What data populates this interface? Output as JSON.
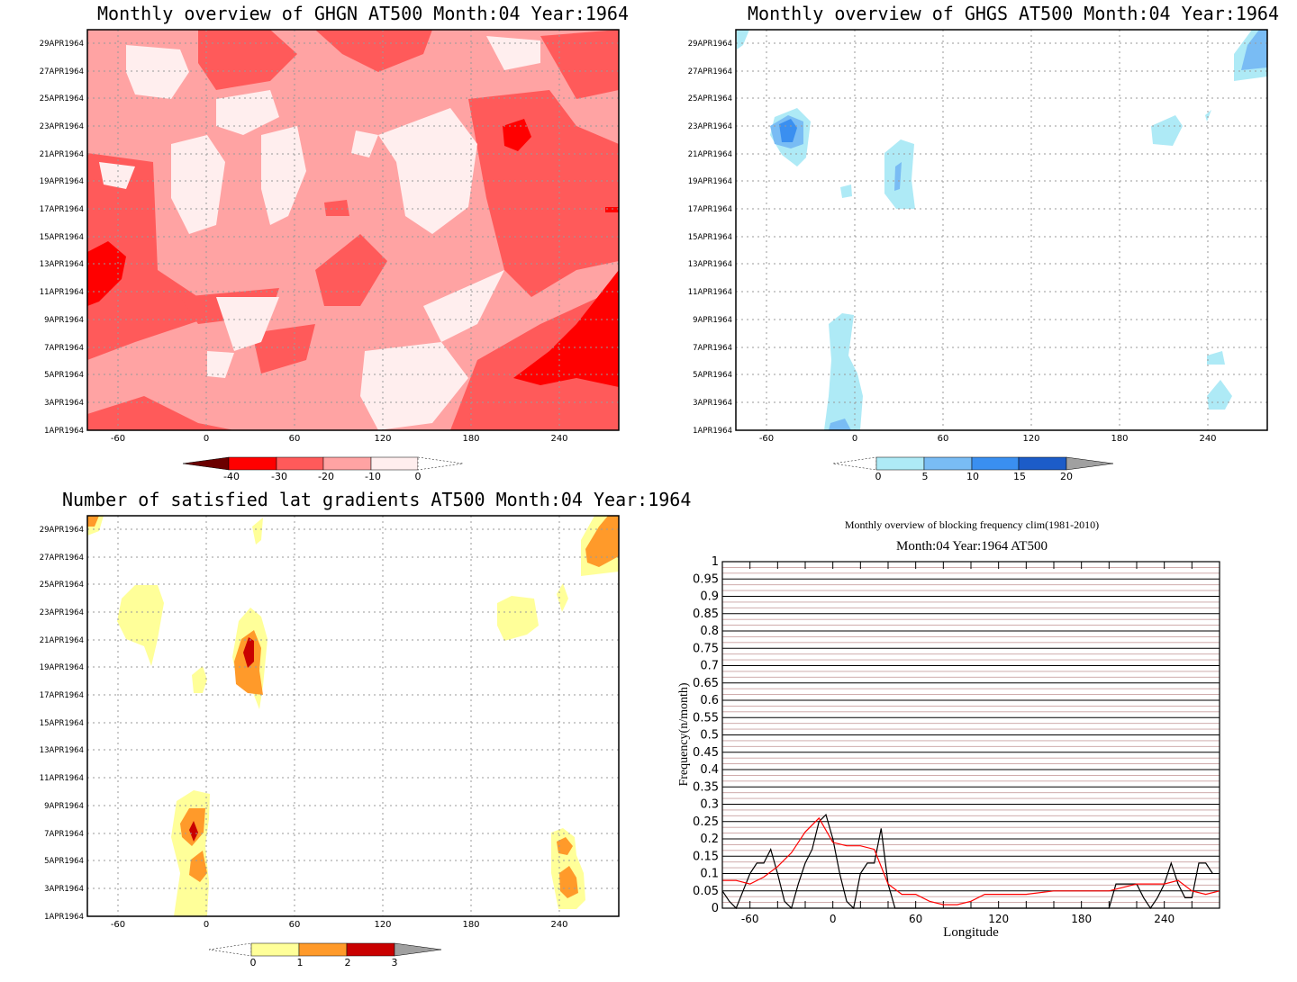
{
  "panels": {
    "ghgn": {
      "title": "Monthly overview of GHGN AT500 Month:04 Year:1964",
      "colorbar": {
        "labels": [
          "-40",
          "-30",
          "-20",
          "-10",
          "0"
        ],
        "colors": [
          "#6b0000",
          "#ff0000",
          "#ff5a5a",
          "#ffa3a3",
          "#ffeeee"
        ]
      }
    },
    "ghgs": {
      "title": "Monthly overview of GHGS AT500 Month:04 Year:1964",
      "colorbar": {
        "labels": [
          "0",
          "5",
          "10",
          "15",
          "20"
        ],
        "colors": [
          "#aeeaf6",
          "#79bcf4",
          "#3a8ff0",
          "#1c5cc8",
          "#a0a0a0"
        ]
      }
    },
    "nsat": {
      "title": "Number of satisfied lat gradients AT500 Month:04 Year:1964",
      "colorbar": {
        "labels": [
          "0",
          "1",
          "2",
          "3"
        ],
        "colors": [
          "#ffff99",
          "#ff9a2a",
          "#c90000",
          "#a0a0a0"
        ]
      }
    },
    "freq": {
      "title": "Monthly overview of blocking frequency clim(1981-2010)",
      "subtitle": "Month:04 Year:1964  AT500",
      "xlabel": "Longitude",
      "ylabel": "Frequency(n/month)"
    }
  },
  "shared_axes": {
    "x_ticks": [
      "-60",
      "0",
      "60",
      "120",
      "180",
      "240"
    ],
    "y_dates": [
      "1APR1964",
      "3APR1964",
      "5APR1964",
      "7APR1964",
      "9APR1964",
      "11APR1964",
      "13APR1964",
      "15APR1964",
      "17APR1964",
      "19APR1964",
      "21APR1964",
      "23APR1964",
      "25APR1964",
      "27APR1964",
      "29APR1964"
    ]
  },
  "chart_data": [
    {
      "type": "heatmap",
      "title": "Monthly overview of GHGN AT500 Month:04 Year:1964",
      "x_range": [
        -80,
        280
      ],
      "y_range": [
        "1APR1964",
        "30APR1964"
      ],
      "levels": [
        -40,
        -30,
        -20,
        -10,
        0
      ],
      "background_level_range": [
        -20,
        -10
      ],
      "features": [
        {
          "lon": [
            -80,
            -60
          ],
          "day": [
            10,
            16
          ],
          "level": [
            -40,
            -30
          ]
        },
        {
          "lon": [
            200,
            218
          ],
          "day": [
            21,
            24
          ],
          "level": [
            -40,
            -30
          ]
        },
        {
          "lon": [
            240,
            280
          ],
          "day": [
            4,
            12
          ],
          "level": [
            -40,
            -30
          ]
        },
        {
          "lon": [
            80,
            140
          ],
          "day": [
            8,
            30
          ],
          "level": [
            -10,
            0
          ]
        }
      ]
    },
    {
      "type": "heatmap",
      "title": "Monthly overview of GHGS AT500 Month:04 Year:1964",
      "x_range": [
        -80,
        280
      ],
      "y_range": [
        "1APR1964",
        "30APR1964"
      ],
      "levels": [
        0,
        5,
        10,
        15,
        20
      ],
      "background_level_range": [
        0,
        0
      ],
      "features": [
        {
          "lon": [
            -60,
            -30
          ],
          "day": [
            21,
            24
          ],
          "level": [
            10,
            15
          ]
        },
        {
          "lon": [
            20,
            40
          ],
          "day": [
            17,
            22
          ],
          "level": [
            5,
            10
          ]
        },
        {
          "lon": [
            -20,
            5
          ],
          "day": [
            1,
            9
          ],
          "level": [
            0,
            5
          ]
        },
        {
          "lon": [
            260,
            280
          ],
          "day": [
            26,
            30
          ],
          "level": [
            5,
            10
          ]
        },
        {
          "lon": [
            200,
            220
          ],
          "day": [
            21,
            23
          ],
          "level": [
            0,
            5
          ]
        },
        {
          "lon": [
            240,
            255
          ],
          "day": [
            2,
            6
          ],
          "level": [
            0,
            5
          ]
        }
      ]
    },
    {
      "type": "heatmap",
      "title": "Number of satisfied lat gradients AT500 Month:04 Year:1964",
      "x_range": [
        -80,
        280
      ],
      "y_range": [
        "1APR1964",
        "30APR1964"
      ],
      "levels": [
        0,
        1,
        2,
        3
      ],
      "features": [
        {
          "lon": [
            -60,
            -30
          ],
          "day": [
            19,
            25
          ],
          "level": [
            0,
            1
          ]
        },
        {
          "lon": [
            20,
            40
          ],
          "day": [
            17,
            23
          ],
          "level": [
            2,
            3
          ]
        },
        {
          "lon": [
            -20,
            0
          ],
          "day": [
            1,
            10
          ],
          "level": [
            2,
            3
          ]
        },
        {
          "lon": [
            200,
            225
          ],
          "day": [
            22,
            24
          ],
          "level": [
            0,
            1
          ]
        },
        {
          "lon": [
            235,
            255
          ],
          "day": [
            2,
            6
          ],
          "level": [
            1,
            2
          ]
        },
        {
          "lon": [
            255,
            280
          ],
          "day": [
            27,
            30
          ],
          "level": [
            1,
            2
          ]
        }
      ]
    },
    {
      "type": "line",
      "title": "Monthly overview of blocking frequency clim(1981-2010)",
      "subtitle": "Month:04 Year:1964  AT500",
      "xlabel": "Longitude",
      "ylabel": "Frequency(n/month)",
      "xlim": [
        -80,
        280
      ],
      "ylim": [
        0,
        1
      ],
      "y_ticks": [
        "0",
        "0.05",
        "0.1",
        "0.15",
        "0.2",
        "0.25",
        "0.3",
        "0.35",
        "0.4",
        "0.45",
        "0.5",
        "0.55",
        "0.6",
        "0.65",
        "0.7",
        "0.75",
        "0.8",
        "0.85",
        "0.9",
        "0.95",
        "1"
      ],
      "grid": true,
      "series": [
        {
          "color": "#000000",
          "x": [
            -80,
            -75,
            -70,
            -65,
            -60,
            -55,
            -50,
            -45,
            -40,
            -35,
            -30,
            -25,
            -20,
            -15,
            -10,
            -5,
            0,
            5,
            10,
            15,
            20,
            25,
            30,
            35,
            40,
            45,
            50,
            200,
            205,
            210,
            215,
            220,
            225,
            230,
            235,
            240,
            245,
            250,
            255,
            260,
            265,
            270,
            275
          ],
          "y": [
            0.05,
            0.02,
            0,
            0.05,
            0.1,
            0.13,
            0.13,
            0.17,
            0.1,
            0.02,
            0,
            0.07,
            0.13,
            0.17,
            0.25,
            0.27,
            0.2,
            0.1,
            0.02,
            0,
            0.1,
            0.13,
            0.13,
            0.23,
            0.07,
            0,
            0,
            0,
            0.07,
            0.07,
            0.07,
            0.07,
            0.03,
            0,
            0.03,
            0.07,
            0.13,
            0.07,
            0.03,
            0.03,
            0.13,
            0.13,
            0.1
          ]
        },
        {
          "color": "#ff0000",
          "x": [
            -80,
            -70,
            -60,
            -50,
            -40,
            -30,
            -20,
            -10,
            0,
            10,
            20,
            30,
            40,
            50,
            60,
            70,
            80,
            90,
            100,
            110,
            120,
            130,
            140,
            160,
            180,
            200,
            220,
            240,
            250,
            260,
            270,
            280
          ],
          "y": [
            0.08,
            0.08,
            0.07,
            0.09,
            0.12,
            0.16,
            0.22,
            0.26,
            0.19,
            0.18,
            0.18,
            0.17,
            0.07,
            0.04,
            0.04,
            0.02,
            0.01,
            0.01,
            0.02,
            0.04,
            0.04,
            0.04,
            0.04,
            0.05,
            0.05,
            0.05,
            0.07,
            0.07,
            0.08,
            0.05,
            0.04,
            0.05
          ]
        }
      ]
    }
  ]
}
